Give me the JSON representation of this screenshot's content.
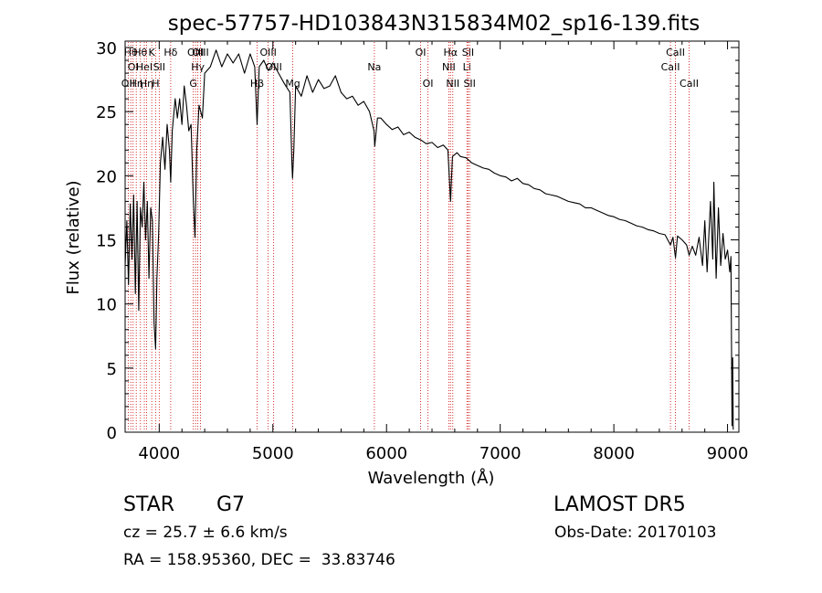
{
  "chart_data": {
    "type": "line",
    "title": "spec-57757-HD103843N315834M02_sp16-139.fits",
    "xlabel": "Wavelength (Å)",
    "ylabel": "Flux (relative)",
    "xlim": [
      3700,
      9100
    ],
    "ylim": [
      0,
      30.5
    ],
    "x_ticks": [
      4000,
      5000,
      6000,
      7000,
      8000,
      9000
    ],
    "y_ticks": [
      0,
      5,
      10,
      15,
      20,
      25,
      30
    ],
    "grid": false,
    "series": [
      {
        "points": [
          [
            3700,
            13
          ],
          [
            3715,
            16.5
          ],
          [
            3730,
            11.5
          ],
          [
            3745,
            17.8
          ],
          [
            3760,
            13.5
          ],
          [
            3775,
            18.5
          ],
          [
            3790,
            10.8
          ],
          [
            3805,
            18
          ],
          [
            3820,
            9.5
          ],
          [
            3835,
            17.5
          ],
          [
            3850,
            16
          ],
          [
            3865,
            19.5
          ],
          [
            3880,
            15
          ],
          [
            3895,
            18
          ],
          [
            3910,
            12
          ],
          [
            3925,
            17.5
          ],
          [
            3940,
            16.5
          ],
          [
            3955,
            8.5
          ],
          [
            3968,
            6.5
          ],
          [
            3980,
            12
          ],
          [
            3995,
            15.5
          ],
          [
            4010,
            21
          ],
          [
            4030,
            23
          ],
          [
            4050,
            20.5
          ],
          [
            4070,
            24
          ],
          [
            4090,
            22
          ],
          [
            4101,
            19.5
          ],
          [
            4115,
            23.5
          ],
          [
            4140,
            26
          ],
          [
            4160,
            24.5
          ],
          [
            4180,
            26
          ],
          [
            4200,
            24
          ],
          [
            4220,
            27
          ],
          [
            4240,
            25.5
          ],
          [
            4260,
            23.5
          ],
          [
            4280,
            24
          ],
          [
            4300,
            18
          ],
          [
            4315,
            15.2
          ],
          [
            4330,
            22
          ],
          [
            4350,
            25.5
          ],
          [
            4380,
            24.5
          ],
          [
            4400,
            28
          ],
          [
            4450,
            28.5
          ],
          [
            4500,
            29.8
          ],
          [
            4550,
            28.5
          ],
          [
            4600,
            29.5
          ],
          [
            4650,
            28.8
          ],
          [
            4700,
            29.5
          ],
          [
            4750,
            28
          ],
          [
            4800,
            29.5
          ],
          [
            4840,
            28.5
          ],
          [
            4861,
            24
          ],
          [
            4880,
            28.5
          ],
          [
            4920,
            29
          ],
          [
            4960,
            28.2
          ],
          [
            5000,
            28.8
          ],
          [
            5050,
            28
          ],
          [
            5100,
            27.2
          ],
          [
            5150,
            26.5
          ],
          [
            5167,
            21
          ],
          [
            5173,
            19.8
          ],
          [
            5184,
            22
          ],
          [
            5200,
            27
          ],
          [
            5250,
            26.2
          ],
          [
            5300,
            27.8
          ],
          [
            5350,
            26.5
          ],
          [
            5400,
            27.5
          ],
          [
            5450,
            26.8
          ],
          [
            5500,
            27
          ],
          [
            5550,
            27.8
          ],
          [
            5600,
            26.5
          ],
          [
            5650,
            26
          ],
          [
            5700,
            26.2
          ],
          [
            5750,
            25.5
          ],
          [
            5800,
            25.8
          ],
          [
            5850,
            25
          ],
          [
            5890,
            23.5
          ],
          [
            5896,
            22.3
          ],
          [
            5920,
            24.5
          ],
          [
            5950,
            24.5
          ],
          [
            6000,
            24
          ],
          [
            6050,
            23.6
          ],
          [
            6100,
            23.8
          ],
          [
            6150,
            23.2
          ],
          [
            6200,
            23.4
          ],
          [
            6250,
            23
          ],
          [
            6300,
            22.8
          ],
          [
            6350,
            22.5
          ],
          [
            6400,
            22.6
          ],
          [
            6450,
            22.2
          ],
          [
            6500,
            22.4
          ],
          [
            6540,
            22
          ],
          [
            6563,
            18
          ],
          [
            6580,
            21.5
          ],
          [
            6620,
            21.8
          ],
          [
            6650,
            21.5
          ],
          [
            6700,
            21.4
          ],
          [
            6750,
            21
          ],
          [
            6800,
            20.8
          ],
          [
            6850,
            20.6
          ],
          [
            6900,
            20.5
          ],
          [
            6950,
            20.2
          ],
          [
            7000,
            20
          ],
          [
            7050,
            19.9
          ],
          [
            7100,
            19.6
          ],
          [
            7150,
            19.8
          ],
          [
            7200,
            19.4
          ],
          [
            7250,
            19.3
          ],
          [
            7300,
            19
          ],
          [
            7350,
            18.9
          ],
          [
            7400,
            18.6
          ],
          [
            7450,
            18.5
          ],
          [
            7500,
            18.4
          ],
          [
            7550,
            18.2
          ],
          [
            7600,
            18
          ],
          [
            7650,
            17.9
          ],
          [
            7700,
            17.8
          ],
          [
            7750,
            17.5
          ],
          [
            7800,
            17.5
          ],
          [
            7850,
            17.3
          ],
          [
            7900,
            17.1
          ],
          [
            7950,
            16.9
          ],
          [
            8000,
            16.8
          ],
          [
            8050,
            16.6
          ],
          [
            8100,
            16.5
          ],
          [
            8150,
            16.3
          ],
          [
            8200,
            16.1
          ],
          [
            8250,
            16
          ],
          [
            8300,
            15.8
          ],
          [
            8350,
            15.7
          ],
          [
            8400,
            15.5
          ],
          [
            8450,
            15.4
          ],
          [
            8498,
            14.6
          ],
          [
            8520,
            15.2
          ],
          [
            8542,
            13.6
          ],
          [
            8560,
            15.3
          ],
          [
            8600,
            15
          ],
          [
            8640,
            14.6
          ],
          [
            8662,
            13.8
          ],
          [
            8690,
            14.5
          ],
          [
            8720,
            13.8
          ],
          [
            8750,
            15.2
          ],
          [
            8780,
            13
          ],
          [
            8800,
            16.5
          ],
          [
            8820,
            12.5
          ],
          [
            8850,
            18
          ],
          [
            8870,
            13.5
          ],
          [
            8880,
            19.5
          ],
          [
            8900,
            12
          ],
          [
            8920,
            17.5
          ],
          [
            8940,
            13
          ],
          [
            8960,
            15.5
          ],
          [
            8980,
            13.5
          ],
          [
            9000,
            14.2
          ],
          [
            9020,
            12.5
          ],
          [
            9030,
            13.7
          ],
          [
            9040,
            0.5
          ],
          [
            9045,
            5.8
          ],
          [
            9050,
            0.2
          ]
        ]
      }
    ],
    "line_color": "#000000",
    "marker_color": "#cc0000",
    "line_markers": [
      {
        "wl": 3727,
        "label": "OII",
        "row": 3
      },
      {
        "wl": 3750,
        "label": "Hθ",
        "row": 1
      },
      {
        "wl": 3770,
        "label": "OI",
        "row": 2
      },
      {
        "wl": 3798,
        "label": "Hη",
        "row": 3
      },
      {
        "wl": 3835,
        "label": "Hθ",
        "row": 1
      },
      {
        "wl": 3869,
        "label": "HeI",
        "row": 2
      },
      {
        "wl": 3889,
        "label": "Hη",
        "row": 3
      },
      {
        "wl": 3934,
        "label": "K",
        "row": 1
      },
      {
        "wl": 3968,
        "label": "H",
        "row": 3
      },
      {
        "wl": 4000,
        "label": "SII",
        "row": 2
      },
      {
        "wl": 4101,
        "label": "Hδ",
        "row": 1
      },
      {
        "wl": 4300,
        "label": "G",
        "row": 3
      },
      {
        "wl": 4320,
        "label": "OIII",
        "row": 1
      },
      {
        "wl": 4340,
        "label": "Hγ",
        "row": 2
      },
      {
        "wl": 4363,
        "label": "OIII",
        "row": 1
      },
      {
        "wl": 4861,
        "label": "Hβ",
        "row": 3
      },
      {
        "wl": 4959,
        "label": "OIII",
        "row": 1
      },
      {
        "wl": 5007,
        "label": "OIII",
        "row": 2
      },
      {
        "wl": 5175,
        "label": "Mg",
        "row": 3
      },
      {
        "wl": 5893,
        "label": "Na",
        "row": 2
      },
      {
        "wl": 6300,
        "label": "OI",
        "row": 1
      },
      {
        "wl": 6364,
        "label": "OI",
        "row": 3
      },
      {
        "wl": 6548,
        "label": "NII",
        "row": 2
      },
      {
        "wl": 6563,
        "label": "Hα",
        "row": 1
      },
      {
        "wl": 6583,
        "label": "NII",
        "row": 3
      },
      {
        "wl": 6707,
        "label": "Li",
        "row": 2
      },
      {
        "wl": 6717,
        "label": "SII",
        "row": 1
      },
      {
        "wl": 6731,
        "label": "SII",
        "row": 3
      },
      {
        "wl": 8498,
        "label": "CaII",
        "row": 2
      },
      {
        "wl": 8542,
        "label": "CaII",
        "row": 1
      },
      {
        "wl": 8662,
        "label": "CaII",
        "row": 3
      }
    ]
  },
  "footer": {
    "object_type": "STAR",
    "subclass": "G7",
    "survey": "LAMOST DR5",
    "redshift": "cz = 25.7 ± 6.6 km/s",
    "obs_date": "Obs-Date: 20170103",
    "coords": "RA = 158.95360, DEC =  33.83746"
  }
}
